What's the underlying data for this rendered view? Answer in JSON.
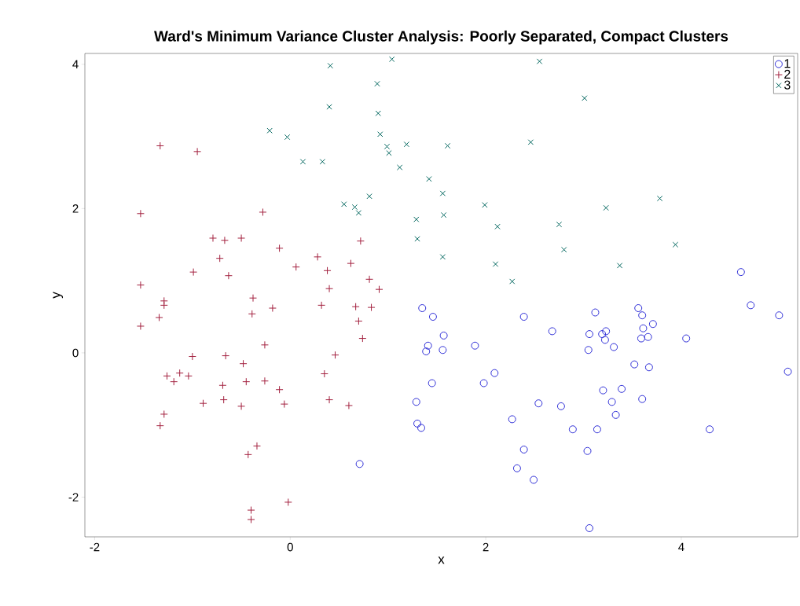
{
  "chart_data": {
    "type": "scatter",
    "title": "Ward's Minimum Variance Cluster Analysis: Poorly Separated, Compact Clusters",
    "xlabel": "x",
    "ylabel": "y",
    "xlim": [
      -2.1,
      5.19
    ],
    "ylim": [
      -2.55,
      4.15
    ],
    "xticks": [
      -2,
      0,
      2,
      4
    ],
    "yticks": [
      -2,
      0,
      2,
      4
    ],
    "grid": false,
    "legend": "top right",
    "series": [
      {
        "name": "1",
        "color": "#3030D8",
        "marker": "circle",
        "x": [
          1.35,
          1.46,
          1.57,
          1.41,
          1.39,
          1.56,
          1.45,
          1.29,
          1.3,
          1.34,
          0.71,
          1.89,
          1.98,
          2.09,
          2.39,
          2.27,
          2.39,
          2.32,
          2.49,
          2.54,
          2.68,
          2.77,
          2.89,
          3.06,
          3.05,
          3.14,
          3.04,
          3.06,
          3.12,
          3.19,
          3.23,
          3.22,
          3.31,
          3.2,
          3.29,
          3.39,
          3.33,
          3.52,
          3.56,
          3.6,
          3.61,
          3.59,
          3.6,
          3.66,
          3.71,
          3.67,
          4.05,
          4.29,
          4.61,
          4.71,
          5.0,
          5.09
        ],
        "values": [
          0.62,
          0.5,
          0.24,
          0.1,
          0.02,
          0.04,
          -0.42,
          -0.68,
          -0.98,
          -1.04,
          -1.54,
          0.1,
          -0.42,
          -0.28,
          0.5,
          -0.92,
          -1.34,
          -1.6,
          -1.76,
          -0.7,
          0.3,
          -0.74,
          -1.06,
          0.26,
          0.04,
          -1.06,
          -1.36,
          -2.43,
          0.56,
          0.26,
          0.3,
          0.18,
          0.08,
          -0.52,
          -0.68,
          -0.5,
          -0.86,
          -0.16,
          0.62,
          0.52,
          0.34,
          0.2,
          -0.64,
          0.22,
          0.4,
          -0.2,
          0.2,
          -1.06,
          1.12,
          0.66,
          0.52,
          -0.26
        ]
      },
      {
        "name": "2",
        "color": "#A3213F",
        "marker": "plus",
        "x": [
          -1.33,
          -0.95,
          -1.53,
          -0.28,
          -0.79,
          -0.67,
          -0.5,
          -0.72,
          -0.11,
          -0.99,
          -0.63,
          0.06,
          0.28,
          0.38,
          0.62,
          0.72,
          -1.53,
          -1.29,
          -1.29,
          -1.34,
          -1.53,
          -0.38,
          -0.39,
          -0.18,
          0.4,
          0.32,
          0.67,
          0.7,
          0.81,
          0.83,
          0.91,
          0.74,
          -0.26,
          -1.0,
          -0.66,
          -0.48,
          0.46,
          -1.26,
          -1.13,
          -1.04,
          -1.19,
          -0.69,
          -0.45,
          -0.26,
          -0.11,
          0.35,
          -0.89,
          -0.68,
          -0.5,
          -0.06,
          0.4,
          0.6,
          -1.29,
          -1.33,
          -0.34,
          -0.43,
          -0.02,
          -0.4,
          -0.4
        ],
        "values": [
          2.87,
          2.79,
          1.93,
          1.95,
          1.59,
          1.56,
          1.59,
          1.31,
          1.45,
          1.12,
          1.07,
          1.19,
          1.33,
          1.14,
          1.24,
          1.55,
          0.94,
          0.72,
          0.66,
          0.49,
          0.37,
          0.76,
          0.54,
          0.62,
          0.89,
          0.66,
          0.64,
          0.44,
          1.02,
          0.63,
          0.88,
          0.2,
          0.11,
          -0.05,
          -0.04,
          -0.15,
          -0.03,
          -0.32,
          -0.28,
          -0.32,
          -0.4,
          -0.45,
          -0.4,
          -0.39,
          -0.51,
          -0.29,
          -0.7,
          -0.65,
          -0.74,
          -0.71,
          -0.65,
          -0.73,
          -0.85,
          -1.01,
          -1.29,
          -1.41,
          -2.07,
          -2.18,
          -2.31
        ]
      },
      {
        "name": "3",
        "color": "#01665E",
        "marker": "cross",
        "x": [
          0.41,
          1.04,
          2.55,
          0.4,
          0.89,
          0.9,
          0.92,
          -0.21,
          -0.03,
          0.99,
          1.01,
          1.19,
          1.12,
          1.61,
          0.13,
          0.33,
          3.01,
          2.46,
          1.42,
          0.81,
          0.55,
          0.66,
          0.7,
          1.56,
          1.99,
          1.29,
          1.57,
          2.12,
          1.3,
          2.75,
          3.23,
          3.78,
          2.8,
          3.94,
          1.56,
          2.1,
          2.27,
          3.37
        ],
        "values": [
          3.98,
          4.07,
          4.04,
          3.41,
          3.73,
          3.32,
          3.03,
          3.08,
          2.99,
          2.86,
          2.77,
          2.89,
          2.57,
          2.87,
          2.65,
          2.65,
          3.53,
          2.92,
          2.41,
          2.17,
          2.06,
          2.02,
          1.94,
          2.21,
          2.05,
          1.85,
          1.91,
          1.75,
          1.58,
          1.78,
          2.01,
          2.14,
          1.43,
          1.5,
          1.33,
          1.23,
          0.99,
          1.21
        ]
      }
    ]
  }
}
